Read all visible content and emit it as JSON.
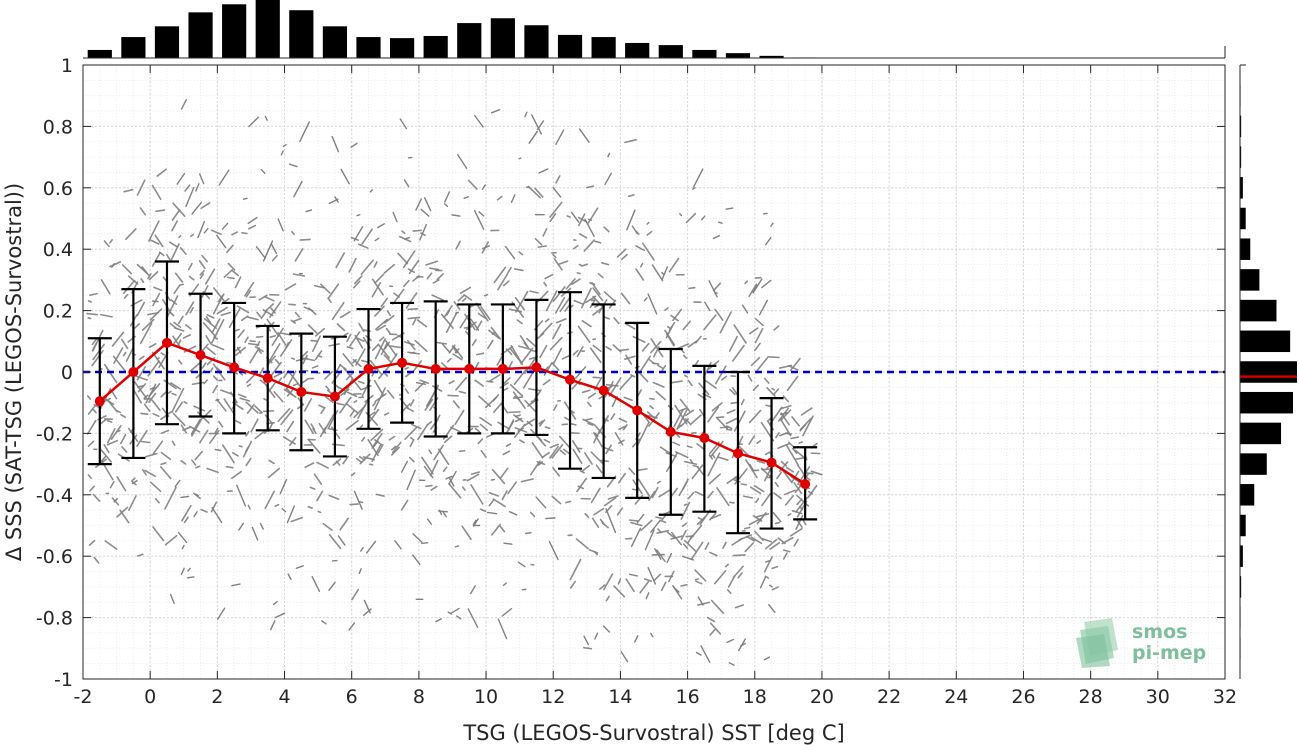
{
  "chart_data": {
    "type": "scatter",
    "xlabel": "TSG (LEGOS-Survostral) SST [deg C]",
    "ylabel": "Δ SSS (SAT-TSG (LEGOS-Survostral))",
    "xlim": [
      -2,
      32
    ],
    "ylim": [
      -1,
      1
    ],
    "x_ticks": [
      "-2",
      "0",
      "2",
      "4",
      "6",
      "8",
      "10",
      "12",
      "14",
      "16",
      "18",
      "20",
      "22",
      "24",
      "26",
      "28",
      "30",
      "32"
    ],
    "y_ticks": [
      "1",
      "0.8",
      "0.6",
      "0.4",
      "0.2",
      "0",
      "-0.2",
      "-0.4",
      "-0.6",
      "-0.8",
      "-1"
    ],
    "grid": true,
    "reference_line": {
      "y": 0,
      "style": "dashed",
      "color": "#0000cc"
    },
    "binned_means": {
      "x": [
        -1.5,
        -0.5,
        0.5,
        1.5,
        2.5,
        3.5,
        4.5,
        5.5,
        6.5,
        7.5,
        8.5,
        9.5,
        10.5,
        11.5,
        12.5,
        13.5,
        14.5,
        15.5,
        16.5,
        17.5,
        18.5,
        19.5
      ],
      "mean": [
        -0.095,
        0.0,
        0.095,
        0.055,
        0.015,
        -0.02,
        -0.065,
        -0.08,
        0.01,
        0.03,
        0.01,
        0.01,
        0.01,
        0.015,
        -0.025,
        -0.06,
        -0.125,
        -0.195,
        -0.215,
        -0.265,
        -0.295,
        -0.365
      ],
      "upper": [
        0.11,
        0.27,
        0.36,
        0.255,
        0.225,
        0.15,
        0.125,
        0.115,
        0.205,
        0.225,
        0.23,
        0.22,
        0.22,
        0.235,
        0.26,
        0.22,
        0.16,
        0.075,
        0.02,
        0.0,
        -0.085,
        -0.245
      ],
      "lower": [
        -0.3,
        -0.28,
        -0.17,
        -0.145,
        -0.2,
        -0.19,
        -0.255,
        -0.275,
        -0.185,
        -0.165,
        -0.21,
        -0.2,
        -0.2,
        -0.205,
        -0.315,
        -0.345,
        -0.41,
        -0.465,
        -0.455,
        -0.525,
        -0.51,
        -0.48
      ],
      "color": "#e00000"
    },
    "scatter_color": "#808080",
    "top_histogram": {
      "bin_centers": [
        -1.5,
        -0.5,
        0.5,
        1.5,
        2.5,
        3.5,
        4.5,
        5.5,
        6.5,
        7.5,
        8.5,
        9.5,
        10.5,
        11.5,
        12.5,
        13.5,
        14.5,
        15.5,
        16.5,
        17.5,
        18.5,
        19.5
      ],
      "relative_counts": [
        0.15,
        0.39,
        0.59,
        0.85,
        1.0,
        1.08,
        0.89,
        0.59,
        0.39,
        0.37,
        0.41,
        0.65,
        0.74,
        0.61,
        0.43,
        0.39,
        0.28,
        0.24,
        0.15,
        0.09,
        0.04,
        0.01
      ]
    },
    "right_histogram": {
      "bin_centers": [
        0.9,
        0.8,
        0.7,
        0.6,
        0.5,
        0.4,
        0.3,
        0.2,
        0.1,
        0.0,
        -0.1,
        -0.2,
        -0.3,
        -0.4,
        -0.5,
        -0.6,
        -0.7,
        -0.8,
        -0.9
      ],
      "relative_counts": [
        0.01,
        0.02,
        0.02,
        0.05,
        0.1,
        0.18,
        0.34,
        0.64,
        0.88,
        1.0,
        0.93,
        0.72,
        0.47,
        0.25,
        0.1,
        0.05,
        0.02,
        0.01,
        0.01
      ],
      "mean_line_y": -0.015,
      "mean_line_color": "#cc0000"
    }
  },
  "logo": {
    "line1": "smos",
    "line2": "pi-mep"
  }
}
